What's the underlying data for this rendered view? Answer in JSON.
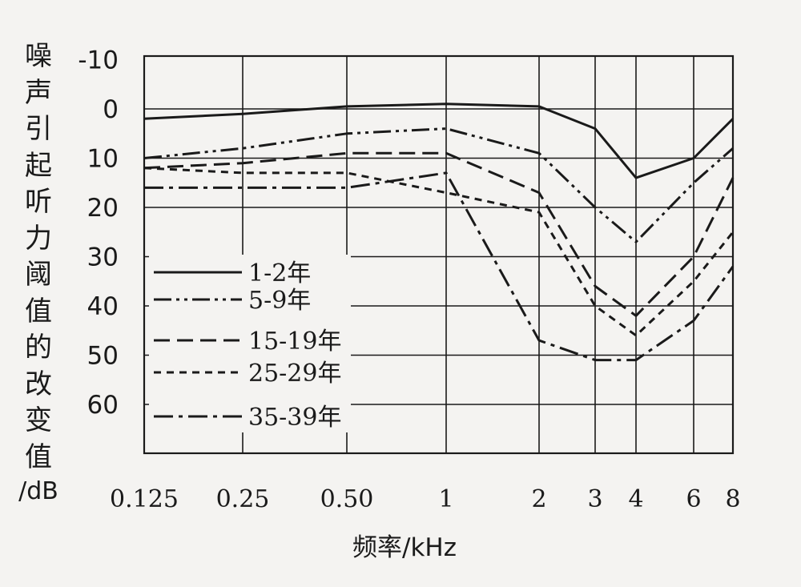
{
  "chart_data": {
    "type": "line",
    "xlabel": "频率/kHz",
    "ylabel": "噪声引起听力阈值的改变值/dB",
    "ylabel_chars": [
      "噪",
      "声",
      "引",
      "起",
      "听",
      "力",
      "阈",
      "值",
      "的",
      "改",
      "变",
      "值"
    ],
    "ylabel_unit": "/dB",
    "x": [
      "0.125",
      "0.25",
      "0.50",
      "1",
      "2",
      "3",
      "4",
      "6",
      "8"
    ],
    "y_ticks": [
      "-10",
      "0",
      "10",
      "20",
      "30",
      "40",
      "50",
      "60"
    ],
    "ylim": [
      -10,
      70
    ],
    "y_inverted": true,
    "legend_position": "left",
    "series": [
      {
        "name": "1-2年",
        "dash": "solid",
        "values": [
          2,
          1,
          -0.5,
          -1,
          -0.5,
          4,
          14,
          10,
          2
        ]
      },
      {
        "name": "5-9年",
        "dash": "dash-dot-dot",
        "values": [
          10,
          8,
          5,
          4,
          9,
          20,
          27,
          15,
          8
        ]
      },
      {
        "name": "15-19年",
        "dash": "dash",
        "values": [
          12,
          11,
          9,
          9,
          17,
          36,
          42,
          30,
          14
        ]
      },
      {
        "name": "25-29年",
        "dash": "dot",
        "values": [
          12,
          13,
          13,
          17,
          21,
          40,
          46,
          35,
          25
        ]
      },
      {
        "name": "35-39年",
        "dash": "dash-dot",
        "values": [
          16,
          16,
          16,
          13,
          47,
          51,
          51,
          43,
          32
        ]
      }
    ]
  }
}
